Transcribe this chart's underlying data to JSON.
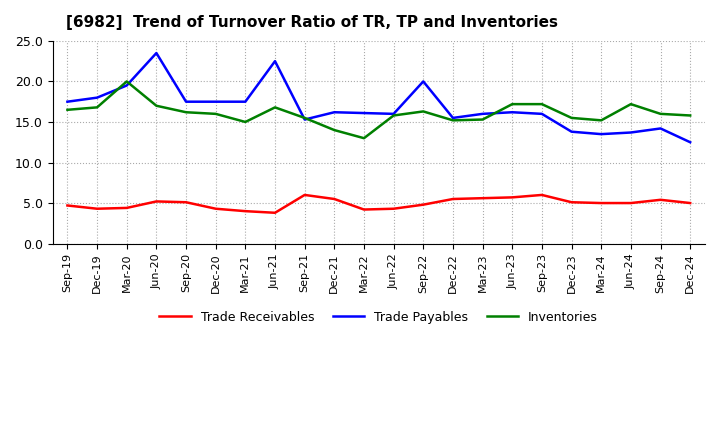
{
  "title": "[6982]  Trend of Turnover Ratio of TR, TP and Inventories",
  "x_labels": [
    "Sep-19",
    "Dec-19",
    "Mar-20",
    "Jun-20",
    "Sep-20",
    "Dec-20",
    "Mar-21",
    "Jun-21",
    "Sep-21",
    "Dec-21",
    "Mar-22",
    "Jun-22",
    "Sep-22",
    "Dec-22",
    "Mar-23",
    "Jun-23",
    "Sep-23",
    "Dec-23",
    "Mar-24",
    "Jun-24",
    "Sep-24",
    "Dec-24"
  ],
  "trade_receivables": [
    4.7,
    4.3,
    4.4,
    5.2,
    5.1,
    4.3,
    4.0,
    3.8,
    6.0,
    5.5,
    4.2,
    4.3,
    4.8,
    5.5,
    5.6,
    5.7,
    6.0,
    5.1,
    5.0,
    5.0,
    5.4,
    5.0
  ],
  "trade_payables": [
    17.5,
    18.0,
    19.5,
    23.5,
    17.5,
    17.5,
    17.5,
    22.5,
    15.3,
    16.2,
    16.1,
    16.0,
    20.0,
    15.5,
    16.0,
    16.2,
    16.0,
    13.8,
    13.5,
    13.7,
    14.2,
    12.5
  ],
  "inventories": [
    16.5,
    16.8,
    20.0,
    17.0,
    16.2,
    16.0,
    15.0,
    16.8,
    15.5,
    14.0,
    13.0,
    15.8,
    16.3,
    15.2,
    15.3,
    17.2,
    17.2,
    15.5,
    15.2,
    17.2,
    16.0,
    15.8
  ],
  "ylim": [
    0,
    25
  ],
  "yticks": [
    0.0,
    5.0,
    10.0,
    15.0,
    20.0,
    25.0
  ],
  "colors": {
    "trade_receivables": "#ff0000",
    "trade_payables": "#0000ff",
    "inventories": "#008000"
  },
  "legend_labels": [
    "Trade Receivables",
    "Trade Payables",
    "Inventories"
  ],
  "background_color": "#ffffff",
  "grid_color": "#aaaaaa"
}
